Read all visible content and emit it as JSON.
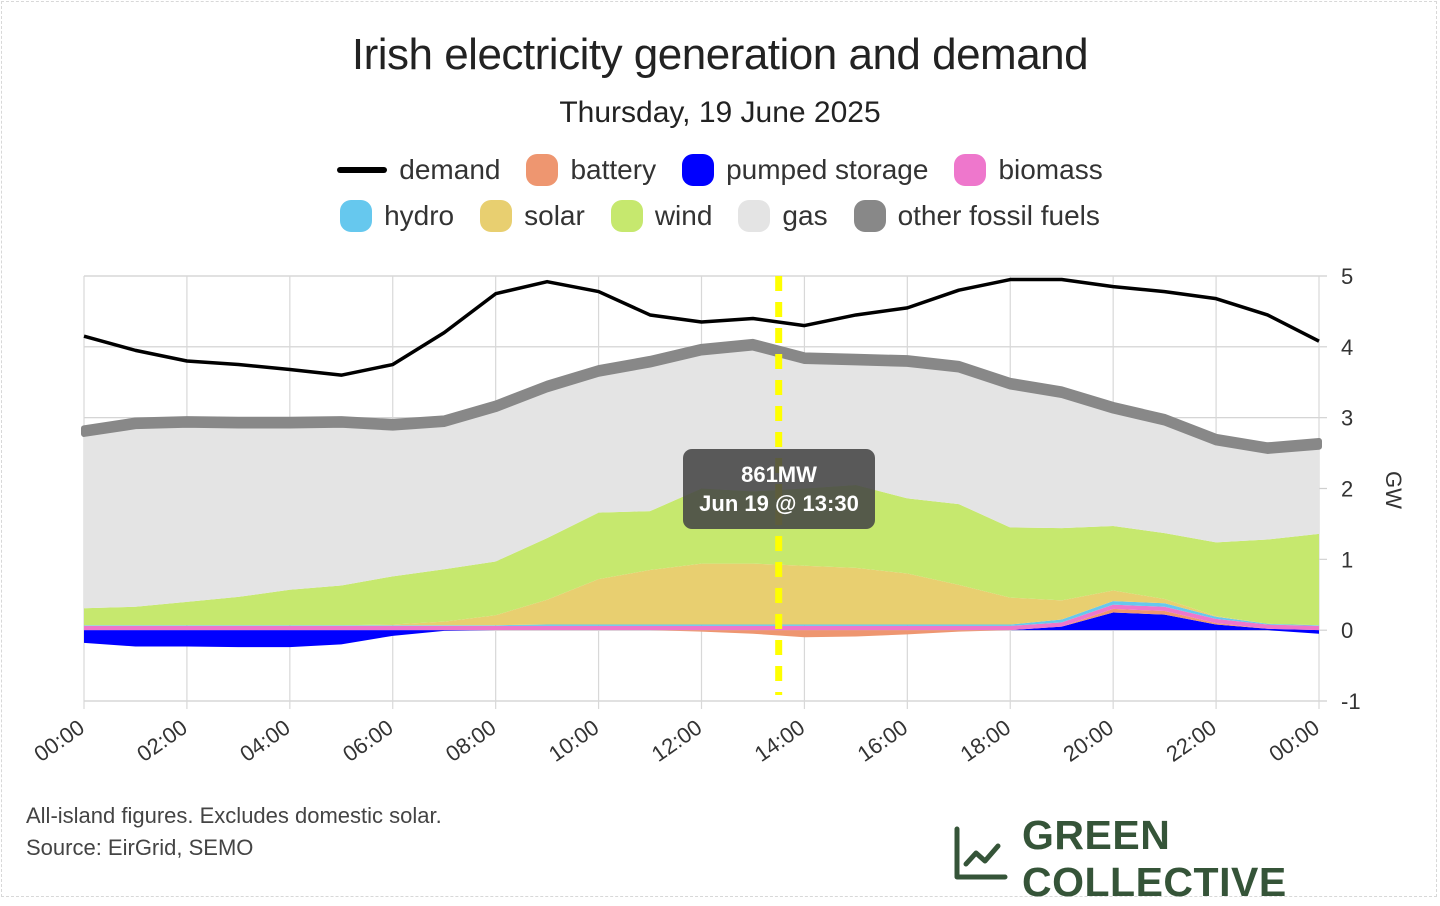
{
  "title": "Irish electricity generation and demand",
  "subtitle": "Thursday, 19 June 2025",
  "legend": [
    {
      "name": "demand",
      "color": "#000000",
      "kind": "line"
    },
    {
      "name": "battery",
      "color": "#ee9670",
      "kind": "area"
    },
    {
      "name": "pumped storage",
      "color": "#0000ff",
      "kind": "area"
    },
    {
      "name": "biomass",
      "color": "#ee77cc",
      "kind": "area"
    },
    {
      "name": "hydro",
      "color": "#66c8ee",
      "kind": "area"
    },
    {
      "name": "solar",
      "color": "#e8cf70",
      "kind": "area"
    },
    {
      "name": "wind",
      "color": "#c6e86e",
      "kind": "area"
    },
    {
      "name": "gas",
      "color": "#e4e4e4",
      "kind": "area"
    },
    {
      "name": "other fossil fuels",
      "color": "#888888",
      "kind": "area"
    }
  ],
  "tooltip": {
    "value": "861MW",
    "time": "Jun 19 @ 13:30"
  },
  "footnote": {
    "line1": "All-island figures. Excludes domestic solar.",
    "line2": "Source: EirGrid, SEMO"
  },
  "brand": {
    "name": "GREEN COLLECTIVE",
    "icon": "line-chart-icon",
    "color": "#355438"
  },
  "chart_data": {
    "type": "area",
    "stacked": true,
    "title": "Irish electricity generation and demand",
    "subtitle": "Thursday, 19 June 2025",
    "xlabel": "",
    "ylabel": "GW",
    "y_axis_position": "right",
    "ylim": [
      -1,
      5
    ],
    "yticks": [
      -1,
      0,
      1,
      2,
      3,
      4,
      5
    ],
    "xlim": [
      0,
      24
    ],
    "xticks": [
      "00:00",
      "02:00",
      "04:00",
      "06:00",
      "08:00",
      "10:00",
      "12:00",
      "14:00",
      "16:00",
      "18:00",
      "20:00",
      "22:00",
      "00:00"
    ],
    "grid": true,
    "legend_position": "top-center",
    "highlight_time": 13.5,
    "highlight_color": "#ffff00",
    "x_hours": [
      0,
      1,
      2,
      3,
      4,
      5,
      6,
      7,
      8,
      9,
      10,
      11,
      12,
      13,
      14,
      15,
      16,
      17,
      18,
      19,
      20,
      21,
      22,
      23,
      24
    ],
    "series": [
      {
        "name": "pumped storage",
        "color": "#0000ff",
        "values": [
          -0.18,
          -0.23,
          -0.23,
          -0.24,
          -0.24,
          -0.2,
          -0.08,
          -0.01,
          0,
          0,
          0,
          0,
          0,
          0,
          0,
          0,
          0,
          0,
          0,
          0.05,
          0.25,
          0.22,
          0.08,
          0.02,
          -0.05
        ]
      },
      {
        "name": "battery",
        "color": "#ee9670",
        "values": [
          0,
          0,
          0,
          0,
          0,
          0,
          0,
          0,
          0,
          0,
          0,
          0,
          -0.02,
          -0.05,
          -0.1,
          -0.09,
          -0.06,
          -0.02,
          0,
          0,
          0.05,
          0.05,
          0.02,
          0,
          0
        ]
      },
      {
        "name": "biomass",
        "color": "#ee77cc",
        "values": [
          0.06,
          0.06,
          0.06,
          0.06,
          0.06,
          0.06,
          0.06,
          0.06,
          0.06,
          0.06,
          0.06,
          0.06,
          0.06,
          0.06,
          0.06,
          0.06,
          0.06,
          0.06,
          0.06,
          0.06,
          0.06,
          0.06,
          0.06,
          0.06,
          0.06
        ]
      },
      {
        "name": "hydro",
        "color": "#66c8ee",
        "values": [
          0.01,
          0.01,
          0.01,
          0.01,
          0.01,
          0.01,
          0.01,
          0.01,
          0.01,
          0.02,
          0.02,
          0.02,
          0.02,
          0.02,
          0.02,
          0.02,
          0.02,
          0.02,
          0.02,
          0.04,
          0.05,
          0.05,
          0.03,
          0.01,
          0.01
        ]
      },
      {
        "name": "solar",
        "color": "#e8cf70",
        "values": [
          0,
          0,
          0,
          0,
          0,
          0,
          0.01,
          0.05,
          0.14,
          0.35,
          0.64,
          0.77,
          0.86,
          0.86,
          0.83,
          0.8,
          0.72,
          0.56,
          0.38,
          0.27,
          0.15,
          0.06,
          0.01,
          0,
          0
        ]
      },
      {
        "name": "wind",
        "color": "#c6e86e",
        "values": [
          0.24,
          0.26,
          0.33,
          0.4,
          0.5,
          0.56,
          0.68,
          0.74,
          0.76,
          0.87,
          0.94,
          0.83,
          1.06,
          1.02,
          1.09,
          1.17,
          1.06,
          1.14,
          0.99,
          1.02,
          0.91,
          0.93,
          1.04,
          1.19,
          1.29
        ]
      },
      {
        "name": "gas",
        "color": "#e4e4e4",
        "values": [
          2.46,
          2.55,
          2.5,
          2.42,
          2.32,
          2.27,
          2.1,
          2.05,
          2.15,
          2.1,
          1.96,
          2.07,
          1.92,
          2.03,
          1.8,
          1.73,
          1.9,
          1.9,
          1.99,
          1.88,
          1.63,
          1.56,
          1.41,
          1.25,
          1.23
        ]
      },
      {
        "name": "other fossil fuels",
        "color": "#888888",
        "values": [
          0.08,
          0.08,
          0.08,
          0.08,
          0.08,
          0.08,
          0.08,
          0.08,
          0.08,
          0.08,
          0.08,
          0.08,
          0.08,
          0.08,
          0.08,
          0.08,
          0.08,
          0.08,
          0.08,
          0.08,
          0.08,
          0.08,
          0.08,
          0.08,
          0.08
        ]
      },
      {
        "name": "demand",
        "color": "#000000",
        "kind": "line",
        "values": [
          4.15,
          3.95,
          3.8,
          3.75,
          3.68,
          3.6,
          3.75,
          4.2,
          4.75,
          4.92,
          4.78,
          4.45,
          4.35,
          4.4,
          4.3,
          4.45,
          4.55,
          4.8,
          4.95,
          4.95,
          4.85,
          4.78,
          4.68,
          4.45,
          4.08
        ]
      }
    ]
  }
}
